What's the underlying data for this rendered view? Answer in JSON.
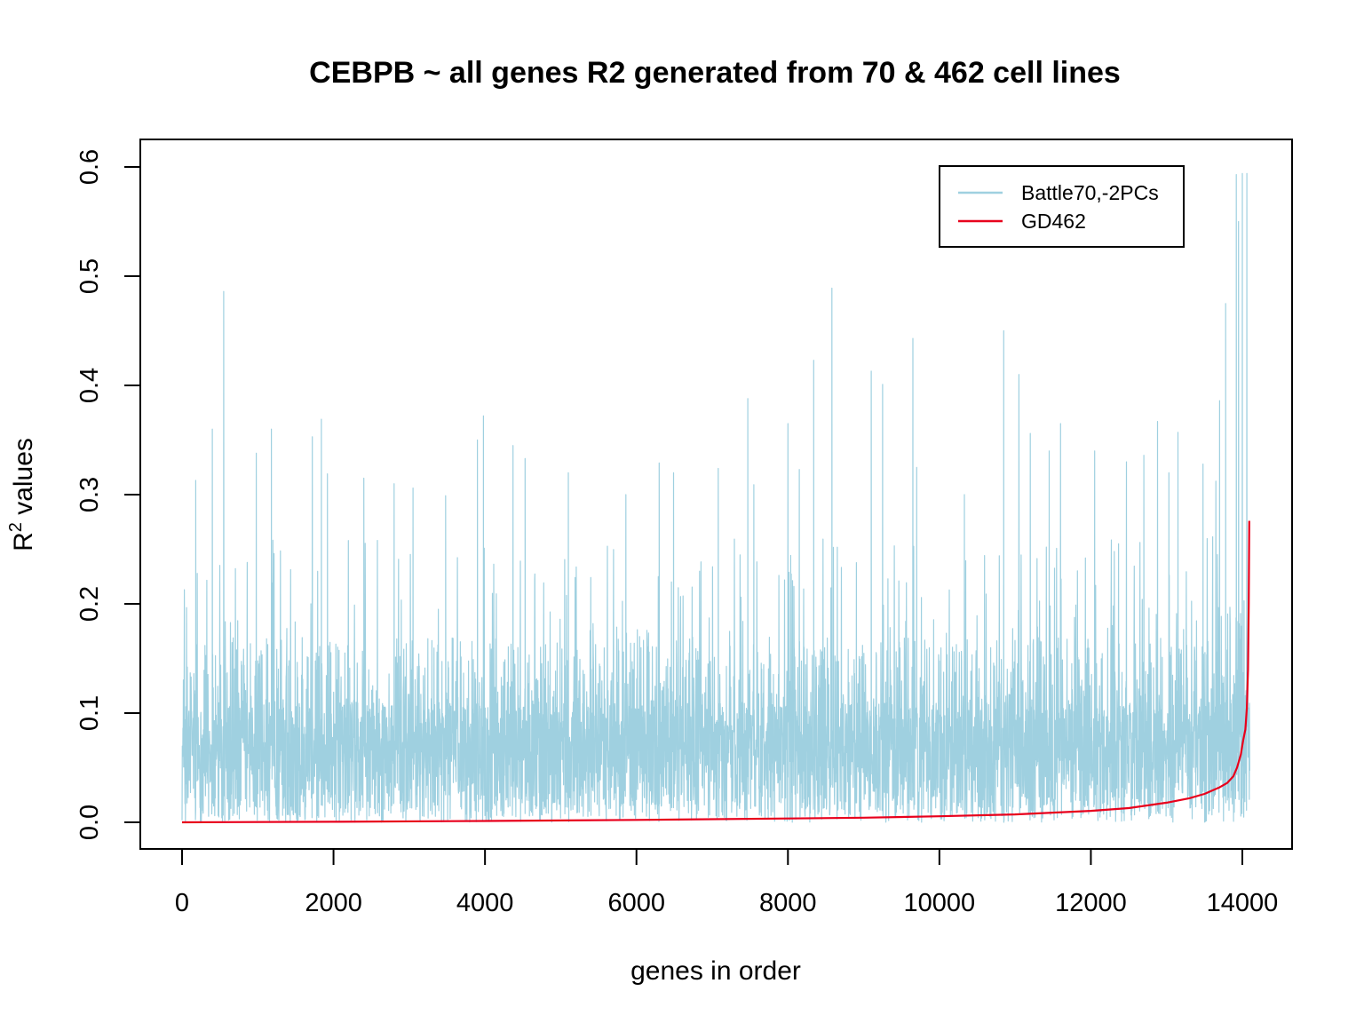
{
  "chart_data": {
    "type": "line",
    "title": "CEBPB ~ all genes R2 generated from 70 & 462 cell lines",
    "xlabel": "genes in order",
    "ylabel_base": "R",
    "ylabel_sup": "2",
    "ylabel_rest": " values",
    "xlim": [
      0,
      14100
    ],
    "ylim": [
      0,
      0.6
    ],
    "x_ticks": [
      0,
      2000,
      4000,
      6000,
      8000,
      10000,
      12000,
      14000
    ],
    "y_ticks": [
      0.0,
      0.1,
      0.2,
      0.3,
      0.4,
      0.5,
      0.6
    ],
    "x_tick_labels": [
      "0",
      "2000",
      "4000",
      "6000",
      "8000",
      "10000",
      "12000",
      "14000"
    ],
    "y_tick_labels": [
      "0.0",
      "0.1",
      "0.2",
      "0.3",
      "0.4",
      "0.5",
      "0.6"
    ],
    "grid": false,
    "legend_position": "top-right",
    "series": [
      {
        "name": "Battle70,-2PCs",
        "color": "#9fd0e0",
        "style": "dense-noise",
        "n_points": 14100,
        "typical_range": [
          0.0,
          0.12
        ],
        "peaks": [
          [
            550,
            0.486
          ],
          [
            8580,
            0.489
          ],
          [
            14000,
            0.594
          ],
          [
            14060,
            0.594
          ],
          [
            13920,
            0.593
          ],
          [
            13950,
            0.55
          ],
          [
            13780,
            0.475
          ],
          [
            10850,
            0.45
          ],
          [
            9650,
            0.443
          ],
          [
            8340,
            0.423
          ],
          [
            9100,
            0.413
          ],
          [
            11050,
            0.41
          ],
          [
            9250,
            0.401
          ],
          [
            7470,
            0.388
          ],
          [
            13700,
            0.386
          ],
          [
            3980,
            0.372
          ],
          [
            1840,
            0.369
          ],
          [
            8000,
            0.365
          ],
          [
            1180,
            0.36
          ],
          [
            400,
            0.36
          ],
          [
            11600,
            0.365
          ],
          [
            12880,
            0.367
          ],
          [
            13150,
            0.357
          ],
          [
            1720,
            0.353
          ],
          [
            3900,
            0.35
          ],
          [
            980,
            0.338
          ],
          [
            4370,
            0.345
          ],
          [
            4530,
            0.333
          ],
          [
            6300,
            0.329
          ],
          [
            7080,
            0.324
          ],
          [
            8150,
            0.323
          ],
          [
            11200,
            0.356
          ],
          [
            12050,
            0.34
          ],
          [
            12700,
            0.336
          ],
          [
            180,
            0.313
          ],
          [
            1920,
            0.319
          ],
          [
            2400,
            0.315
          ],
          [
            2800,
            0.31
          ],
          [
            3050,
            0.306
          ],
          [
            3480,
            0.299
          ],
          [
            5100,
            0.32
          ],
          [
            5860,
            0.3
          ],
          [
            6490,
            0.32
          ],
          [
            7550,
            0.309
          ],
          [
            9700,
            0.325
          ],
          [
            10330,
            0.3
          ],
          [
            11450,
            0.34
          ],
          [
            12470,
            0.33
          ],
          [
            13030,
            0.32
          ],
          [
            13480,
            0.328
          ]
        ]
      },
      {
        "name": "GD462",
        "color": "#e8001c",
        "style": "smooth",
        "points": [
          [
            0,
            0.0
          ],
          [
            2000,
            0.0005
          ],
          [
            4000,
            0.0012
          ],
          [
            6000,
            0.0022
          ],
          [
            8000,
            0.0035
          ],
          [
            9000,
            0.0042
          ],
          [
            10000,
            0.0055
          ],
          [
            11000,
            0.0072
          ],
          [
            12000,
            0.0105
          ],
          [
            12500,
            0.013
          ],
          [
            13000,
            0.018
          ],
          [
            13300,
            0.022
          ],
          [
            13500,
            0.026
          ],
          [
            13700,
            0.032
          ],
          [
            13800,
            0.036
          ],
          [
            13880,
            0.042
          ],
          [
            13930,
            0.05
          ],
          [
            13980,
            0.062
          ],
          [
            14010,
            0.075
          ],
          [
            14040,
            0.085
          ],
          [
            14060,
            0.105
          ],
          [
            14075,
            0.14
          ],
          [
            14085,
            0.2
          ],
          [
            14092,
            0.276
          ]
        ]
      }
    ]
  }
}
